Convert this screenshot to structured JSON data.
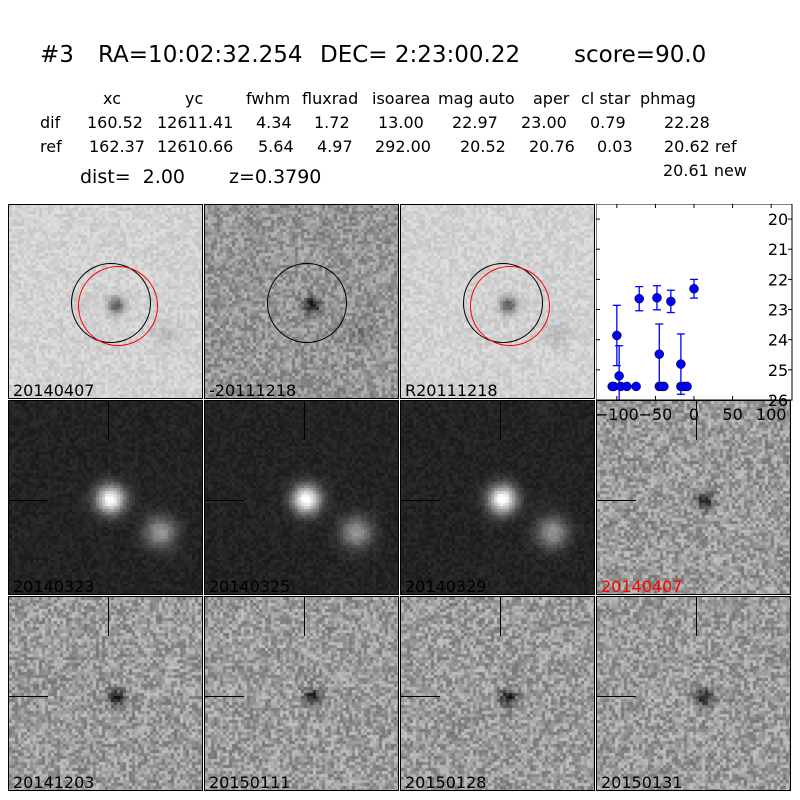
{
  "title": {
    "id": "#3",
    "ra": "RA=10:02:32.254",
    "dec": "DEC= 2:23:00.22",
    "score": "score=90.0"
  },
  "table": {
    "headers": [
      "xc",
      "yc",
      "fwhm",
      "fluxrad",
      "isoarea",
      "mag auto",
      "aper",
      "cl star",
      "phmag"
    ],
    "rows": [
      {
        "label": "dif",
        "values": [
          "160.52",
          "12611.41",
          "4.34",
          "1.72",
          "13.00",
          "22.97",
          "23.00",
          "0.79",
          "22.28"
        ]
      },
      {
        "label": "ref",
        "values": [
          "162.37",
          "12610.66",
          "5.64",
          "4.97",
          "292.00",
          "20.52",
          "20.76",
          "0.03",
          "20.62 ref"
        ]
      }
    ],
    "extra": "20.61 new",
    "dist": "dist=  2.00",
    "z": "z=0.3790"
  },
  "panels": [
    {
      "label": "20140407",
      "style": "light",
      "circles": true
    },
    {
      "label": "-20111218",
      "style": "mid",
      "circles": "black"
    },
    {
      "label": "R20111218",
      "style": "light",
      "circles": true
    },
    null,
    {
      "label": "20140323",
      "style": "dark"
    },
    {
      "label": "20140325",
      "style": "dark"
    },
    {
      "label": "20140329",
      "style": "dark"
    },
    {
      "label": "20140407",
      "style": "noise",
      "label_color": "#ff0000"
    },
    {
      "label": "20141203",
      "style": "noise"
    },
    {
      "label": "20150111",
      "style": "noise"
    },
    {
      "label": "20150128",
      "style": "noise"
    },
    {
      "label": "20150131",
      "style": "noise"
    }
  ],
  "colors": {
    "point": "#0000ff",
    "circle_ref": "#000000",
    "circle_new": "#ff0000"
  },
  "chart_data": {
    "type": "scatter",
    "xlim": [
      -127,
      127
    ],
    "ylim": [
      26,
      19.5
    ],
    "y_inverted": true,
    "xticks": [
      -100,
      -50,
      0,
      50,
      100
    ],
    "yticks": [
      20,
      21,
      22,
      23,
      24,
      25,
      26
    ],
    "xtick_labels": [
      "−100",
      "−50",
      "0",
      "50",
      "100"
    ],
    "ytick_labels": [
      "20",
      "21",
      "22",
      "23",
      "24",
      "25",
      "26"
    ],
    "points": [
      {
        "x": -106,
        "y": 25.55
      },
      {
        "x": -104,
        "y": 25.55
      },
      {
        "x": -100,
        "y": 23.86,
        "err": 1.0
      },
      {
        "x": -97,
        "y": 25.2,
        "err": 1.0
      },
      {
        "x": -95,
        "y": 25.55
      },
      {
        "x": -87,
        "y": 25.55
      },
      {
        "x": -75,
        "y": 25.55
      },
      {
        "x": -71,
        "y": 22.64,
        "err": 0.4
      },
      {
        "x": -48,
        "y": 22.61,
        "err": 0.4
      },
      {
        "x": -45,
        "y": 24.48,
        "err": 1.0
      },
      {
        "x": -45,
        "y": 25.55
      },
      {
        "x": -42,
        "y": 25.55
      },
      {
        "x": -39,
        "y": 25.55
      },
      {
        "x": -30,
        "y": 22.73,
        "err": 0.37
      },
      {
        "x": -17,
        "y": 24.81,
        "err": 1.0
      },
      {
        "x": -17,
        "y": 25.55
      },
      {
        "x": -13,
        "y": 25.55
      },
      {
        "x": -9,
        "y": 25.55
      },
      {
        "x": 0,
        "y": 22.31,
        "err": 0.31
      }
    ]
  }
}
